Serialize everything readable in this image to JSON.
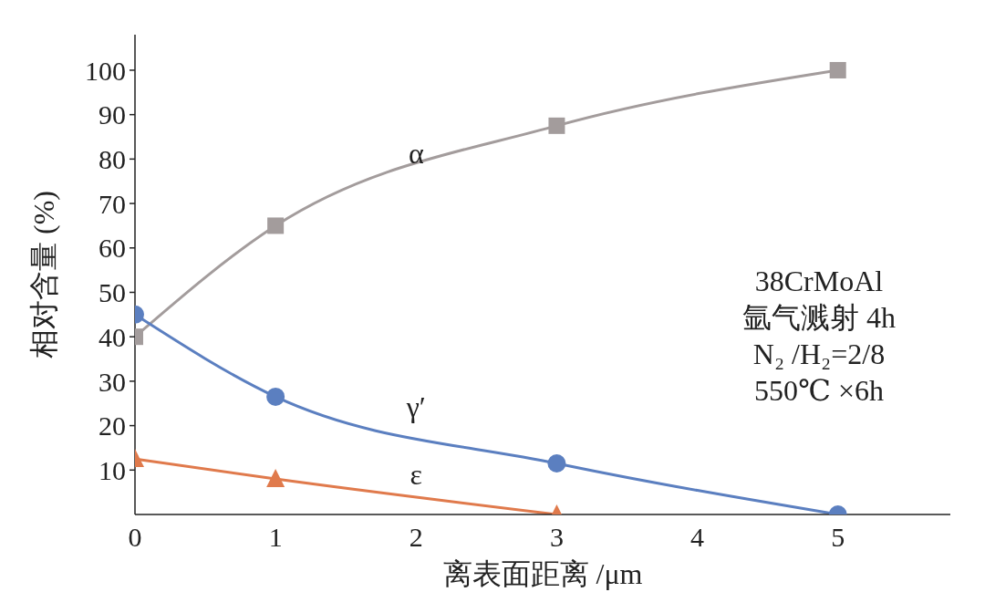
{
  "chart_data": {
    "type": "line",
    "xlabel": "离表面距离 /μm",
    "ylabel": "相对含量 (%)",
    "x": [
      0,
      1,
      3,
      5
    ],
    "series": [
      {
        "name": "α",
        "color": "#a39c9c",
        "marker": "square",
        "values": [
          40,
          65,
          87.5,
          100
        ]
      },
      {
        "name": "γ′",
        "color": "#5b7fc0",
        "marker": "circle",
        "values": [
          45,
          26.5,
          11.5,
          0
        ]
      },
      {
        "name": "ε",
        "color": "#e07a4c",
        "marker": "triangle",
        "values": [
          12.5,
          8,
          0,
          null
        ]
      }
    ],
    "xlim": [
      0,
      5.8
    ],
    "xticks": [
      0,
      1,
      2,
      3,
      4,
      5
    ],
    "ylim": [
      0,
      108
    ],
    "yticks": [
      10,
      20,
      30,
      40,
      50,
      60,
      70,
      80,
      90,
      100
    ],
    "grid": false,
    "legend": false,
    "annotations": [
      "38CrMoAl",
      "氩气溅射 4h",
      "N₂ /H₂=2/8",
      "550℃ ×6h"
    ]
  }
}
